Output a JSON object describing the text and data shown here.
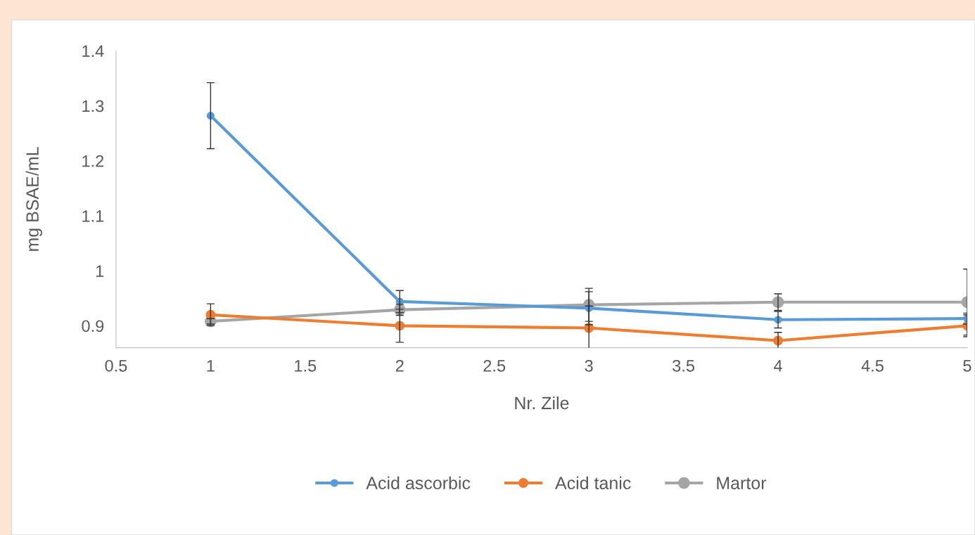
{
  "chart_data": {
    "type": "line",
    "xlabel": "Nr. Zile",
    "ylabel": "mg BSAE/mL",
    "x": [
      1,
      2,
      3,
      4,
      5
    ],
    "series": [
      {
        "name": "Acid ascorbic",
        "color": "#5b9bd5",
        "values": [
          1.282,
          0.944,
          0.932,
          0.911,
          0.913
        ],
        "errors": [
          0.06,
          0.02,
          0.03,
          0.015,
          0.01
        ]
      },
      {
        "name": "Acid tanic",
        "color": "#ed7d31",
        "values": [
          0.92,
          0.9,
          0.896,
          0.873,
          0.9
        ],
        "errors": [
          0.02,
          0.03,
          0.04,
          0.015,
          0.02
        ]
      },
      {
        "name": "Martor",
        "color": "#a5a5a5",
        "values": [
          0.908,
          0.929,
          0.938,
          0.943,
          0.943
        ],
        "errors": [
          0.005,
          0.01,
          0.03,
          0.015,
          0.06
        ]
      }
    ],
    "xlim": [
      0.5,
      5
    ],
    "xticks": [
      0.5,
      1,
      1.5,
      2,
      2.5,
      3,
      3.5,
      4,
      4.5,
      5
    ],
    "ylim": [
      0.86,
      1.4
    ],
    "yticks": [
      0.9,
      1,
      1.1,
      1.2,
      1.3,
      1.4
    ],
    "marker": "circle",
    "line_style": "solid",
    "legend": "bottom",
    "grid": false
  }
}
